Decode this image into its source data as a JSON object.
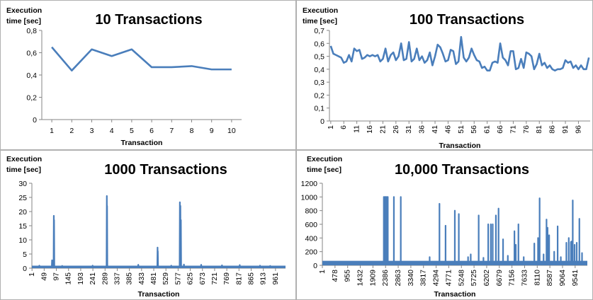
{
  "colors": {
    "series": "#4a7ebb",
    "axis": "#868686",
    "border": "#b0b0b0"
  },
  "chart_data": [
    {
      "type": "line",
      "title": "10 Transactions",
      "ylabel_line1": "Execution",
      "ylabel_line2": "time [sec]",
      "xlabel": "Transaction",
      "ylim": [
        0,
        0.8
      ],
      "y_ticks": [
        "0",
        "0,2",
        "0,4",
        "0,6",
        "0,8"
      ],
      "x_ticks": [
        "1",
        "2",
        "3",
        "4",
        "5",
        "6",
        "7",
        "8",
        "9",
        "10"
      ],
      "grid": false,
      "legend": "none",
      "x": [
        1,
        2,
        3,
        4,
        5,
        6,
        7,
        8,
        9,
        10
      ],
      "values": [
        0.65,
        0.44,
        0.63,
        0.57,
        0.63,
        0.47,
        0.47,
        0.48,
        0.45,
        0.45
      ]
    },
    {
      "type": "line",
      "title": "100 Transactions",
      "ylabel_line1": "Execution",
      "ylabel_line2": "time [sec]",
      "xlabel": "Transaction",
      "ylim": [
        0,
        0.7
      ],
      "y_ticks": [
        "0",
        "0,1",
        "0,2",
        "0,3",
        "0,4",
        "0,5",
        "0,6",
        "0,7"
      ],
      "x_ticks": [
        "1",
        "6",
        "11",
        "16",
        "21",
        "26",
        "31",
        "36",
        "41",
        "46",
        "51",
        "56",
        "61",
        "66",
        "71",
        "76",
        "81",
        "86",
        "91",
        "96"
      ],
      "grid": false,
      "legend": "none",
      "x_count": 100,
      "values": [
        0.58,
        0.52,
        0.51,
        0.5,
        0.49,
        0.45,
        0.46,
        0.51,
        0.46,
        0.56,
        0.54,
        0.55,
        0.48,
        0.49,
        0.51,
        0.5,
        0.51,
        0.5,
        0.51,
        0.46,
        0.48,
        0.56,
        0.46,
        0.51,
        0.53,
        0.47,
        0.5,
        0.6,
        0.47,
        0.48,
        0.61,
        0.46,
        0.48,
        0.56,
        0.47,
        0.5,
        0.45,
        0.47,
        0.53,
        0.43,
        0.5,
        0.59,
        0.57,
        0.52,
        0.46,
        0.47,
        0.55,
        0.54,
        0.44,
        0.46,
        0.65,
        0.49,
        0.46,
        0.49,
        0.56,
        0.51,
        0.47,
        0.46,
        0.41,
        0.42,
        0.39,
        0.39,
        0.45,
        0.46,
        0.45,
        0.6,
        0.49,
        0.47,
        0.43,
        0.54,
        0.54,
        0.4,
        0.41,
        0.48,
        0.41,
        0.53,
        0.52,
        0.5,
        0.4,
        0.44,
        0.52,
        0.43,
        0.45,
        0.41,
        0.43,
        0.4,
        0.39,
        0.4,
        0.4,
        0.41,
        0.47,
        0.45,
        0.46,
        0.41,
        0.43,
        0.4,
        0.43,
        0.4,
        0.4,
        0.49
      ]
    },
    {
      "type": "line",
      "title": "1000 Transactions",
      "ylabel_line1": "Execution",
      "ylabel_line2": "time [sec]",
      "xlabel": "Transaction",
      "ylim": [
        0,
        30
      ],
      "y_ticks": [
        "0",
        "5",
        "10",
        "15",
        "20",
        "25",
        "30"
      ],
      "x_ticks": [
        "1",
        "49",
        "97",
        "145",
        "193",
        "241",
        "289",
        "337",
        "385",
        "433",
        "481",
        "529",
        "577",
        "625",
        "673",
        "721",
        "769",
        "817",
        "865",
        "913",
        "961"
      ],
      "grid": false,
      "legend": "none",
      "x_count": 1000,
      "baseline": 0.4,
      "spikes": [
        [
          30,
          0.9
        ],
        [
          80,
          2.8
        ],
        [
          84,
          2.2
        ],
        [
          87,
          18.5
        ],
        [
          88,
          17.0
        ],
        [
          120,
          0.8
        ],
        [
          240,
          0.9
        ],
        [
          296,
          25.5
        ],
        [
          297,
          22.0
        ],
        [
          420,
          1.2
        ],
        [
          496,
          7.3
        ],
        [
          497,
          6.0
        ],
        [
          550,
          0.9
        ],
        [
          584,
          23.3
        ],
        [
          586,
          22.0
        ],
        [
          588,
          17.0
        ],
        [
          600,
          1.3
        ],
        [
          668,
          1.2
        ],
        [
          750,
          1.0
        ],
        [
          820,
          1.1
        ],
        [
          900,
          0.9
        ],
        [
          940,
          0.8
        ]
      ]
    },
    {
      "type": "line",
      "title": "10,000 Transactions",
      "ylabel_line1": "Execution",
      "ylabel_line2": "time [sec]",
      "xlabel": "Transaction",
      "ylim": [
        0,
        1200
      ],
      "y_ticks": [
        "0",
        "200",
        "400",
        "600",
        "800",
        "1000",
        "1200"
      ],
      "x_ticks": [
        "1",
        "478",
        "955",
        "1432",
        "1909",
        "2386",
        "2863",
        "3340",
        "3817",
        "4294",
        "4771",
        "5248",
        "5725",
        "6202",
        "6679",
        "7156",
        "7633",
        "8110",
        "8587",
        "9064",
        "9541"
      ],
      "grid": false,
      "legend": "none",
      "x_count": 10000,
      "baseline": 30,
      "spikes": [
        [
          2320,
          1000
        ],
        [
          2360,
          1000
        ],
        [
          2390,
          1000
        ],
        [
          2430,
          1000
        ],
        [
          2470,
          1000
        ],
        [
          2700,
          1000
        ],
        [
          2960,
          1000
        ],
        [
          4050,
          120
        ],
        [
          4420,
          900
        ],
        [
          4650,
          580
        ],
        [
          5000,
          800
        ],
        [
          5150,
          750
        ],
        [
          5500,
          120
        ],
        [
          5600,
          160
        ],
        [
          5900,
          730
        ],
        [
          6080,
          110
        ],
        [
          6260,
          600
        ],
        [
          6360,
          600
        ],
        [
          6430,
          600
        ],
        [
          6550,
          730
        ],
        [
          6650,
          830
        ],
        [
          6820,
          380
        ],
        [
          7000,
          140
        ],
        [
          7250,
          500
        ],
        [
          7300,
          300
        ],
        [
          7400,
          600
        ],
        [
          7600,
          120
        ],
        [
          8000,
          320
        ],
        [
          8140,
          400
        ],
        [
          8200,
          980
        ],
        [
          8350,
          160
        ],
        [
          8460,
          670
        ],
        [
          8500,
          550
        ],
        [
          8560,
          440
        ],
        [
          8750,
          200
        ],
        [
          8880,
          570
        ],
        [
          9000,
          120
        ],
        [
          9210,
          330
        ],
        [
          9300,
          400
        ],
        [
          9380,
          340
        ],
        [
          9400,
          350
        ],
        [
          9450,
          950
        ],
        [
          9520,
          300
        ],
        [
          9600,
          330
        ],
        [
          9700,
          680
        ],
        [
          9800,
          180
        ]
      ]
    }
  ]
}
